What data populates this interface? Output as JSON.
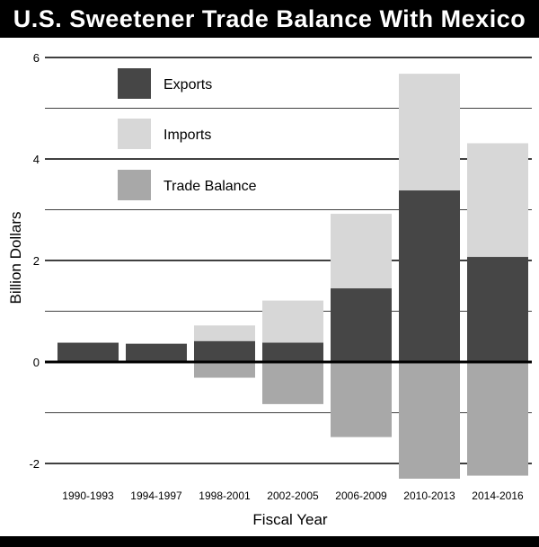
{
  "title": "U.S. Sweetener Trade Balance With Mexico",
  "chart_data": {
    "type": "bar",
    "title": "U.S. Sweetener Trade Balance With Mexico",
    "xlabel": "Fiscal Year",
    "ylabel": "Billion Dollars",
    "ylim": [
      -2.3,
      6.2
    ],
    "yticks": [
      -2,
      0,
      2,
      4,
      6
    ],
    "grid": true,
    "legend_placement": "top-left",
    "categories": [
      "1990-1993",
      "1994-1997",
      "1998-2001",
      "2002-2005",
      "2006-2009",
      "2010-2013",
      "2014-2016"
    ],
    "series": [
      {
        "name": "Exports",
        "color": "#464646",
        "values": [
          0.38,
          0.36,
          0.41,
          0.38,
          1.45,
          3.38,
          2.07
        ]
      },
      {
        "name": "Imports",
        "color": "#d7d7d7",
        "values": [
          0.0,
          0.0,
          0.72,
          1.21,
          2.92,
          5.68,
          4.31
        ]
      },
      {
        "name": "Trade Balance",
        "color": "#a8a8a8",
        "values": [
          0.38,
          0.36,
          -0.31,
          -0.83,
          -1.48,
          -2.3,
          -2.24
        ]
      }
    ]
  }
}
